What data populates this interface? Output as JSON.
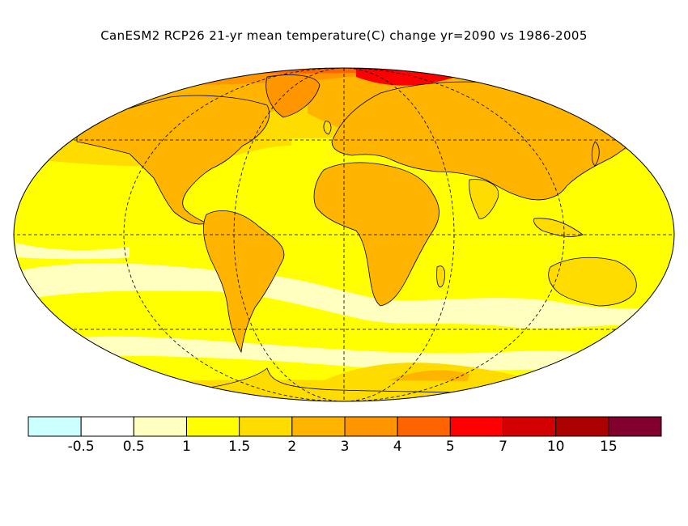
{
  "title": "CanESM2 RCP26 21-yr mean temperature(C) change yr=2090 vs 1986-2005",
  "legend": {
    "colors": [
      "#ccffff",
      "#ffffff",
      "#ffffc0",
      "#ffff00",
      "#ffdc00",
      "#ffb400",
      "#ff9600",
      "#ff6400",
      "#ff0000",
      "#d20000",
      "#aa0000",
      "#82002d"
    ],
    "labels": [
      "-0.5",
      "0.5",
      "1",
      "1.5",
      "2",
      "3",
      "4",
      "5",
      "7",
      "10",
      "15"
    ]
  },
  "colors": {
    "ocean_base": "#ffff00",
    "pale_band": "#ffffc0",
    "warm_1": "#ffdc00",
    "warm_2": "#ffb400",
    "warm_3": "#ff9600",
    "arctic": "#ff6400",
    "arctic_core": "#ff0000",
    "outline": "#000000"
  },
  "map": {
    "projection": "Robinson",
    "gridlines": "dashed",
    "coastlines": true,
    "country_borders": true
  }
}
